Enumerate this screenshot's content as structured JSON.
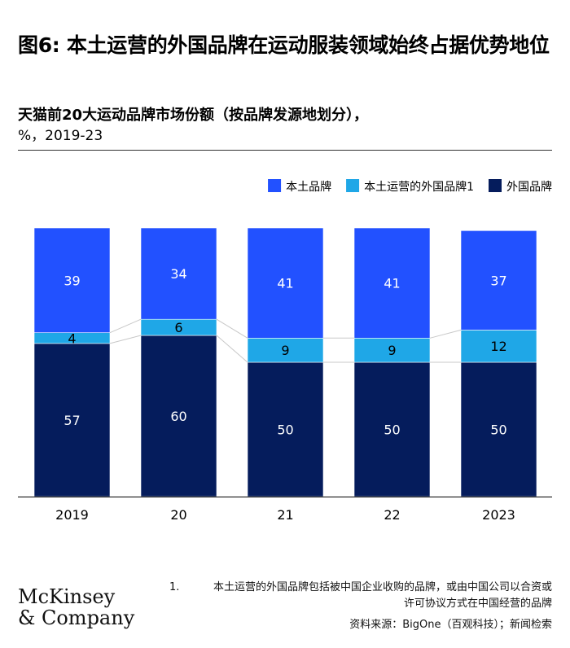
{
  "title": "图6: 本土运营的外国品牌在运动服装领域始终占据优势地位",
  "subtitle": "天猫前20大运动品牌市场份额（按品牌发源地划分），",
  "subtitle_unit": "%，2019-23",
  "logo": {
    "line1": "McKinsey",
    "line2": "& Company"
  },
  "footnote": {
    "number": "1.",
    "text_line1": "本土运营的外国品牌包括被中国企业收购的品牌，或由中国公司以合资或",
    "text_line2": "许可协议方式在中国经营的品牌",
    "source": "资料来源：BigOne（百观科技）；新闻检索"
  },
  "colors": {
    "domestic": "#2251ff",
    "foreign_local": "#1fa7e7",
    "foreign": "#051c5c",
    "connector": "#c8c8c8",
    "axis": "#000000"
  },
  "chart_data": {
    "type": "bar",
    "stacked": true,
    "categories": [
      "2019",
      "20",
      "21",
      "22",
      "2023"
    ],
    "series": [
      {
        "name": "外国品牌",
        "values": [
          57,
          60,
          50,
          50,
          50
        ]
      },
      {
        "name": "本土运营的外国品牌1",
        "values": [
          4,
          6,
          9,
          9,
          12
        ]
      },
      {
        "name": "本土品牌",
        "values": [
          39,
          34,
          41,
          41,
          37
        ]
      }
    ],
    "ylim": [
      0,
      100
    ],
    "legend": [
      {
        "label": "本土品牌"
      },
      {
        "label": "本土运营的外国品牌1"
      },
      {
        "label": "外国品牌"
      }
    ],
    "legend_position": "top-right",
    "grid": false
  }
}
